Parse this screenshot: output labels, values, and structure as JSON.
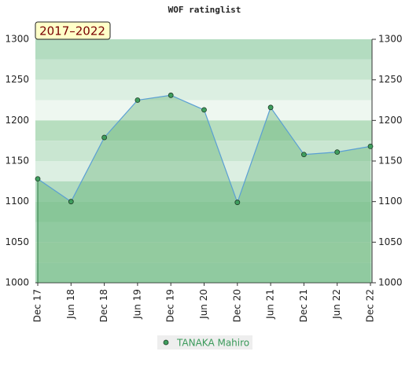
{
  "chart_data": {
    "type": "line",
    "title": "WOF ratinglist",
    "annotation": "2017–2022",
    "categories": [
      "Dec 17",
      "Jun 18",
      "Dec 18",
      "Jun 19",
      "Dec 19",
      "Jun 20",
      "Dec 20",
      "Jun 21",
      "Dec 21",
      "Jun 22",
      "Dec 22"
    ],
    "series": [
      {
        "name": "TANAKA Mahiro",
        "color": "#3f9e5e",
        "line_color": "#5a9fd4",
        "values": [
          1128,
          1100,
          1179,
          1225,
          1231,
          1213,
          1099,
          1216,
          1158,
          1161,
          1168
        ]
      }
    ],
    "ylim": [
      1000,
      1300
    ],
    "yticks": [
      1000,
      1050,
      1100,
      1150,
      1200,
      1250,
      1300
    ],
    "right_axis": true,
    "legend": "bottom"
  }
}
